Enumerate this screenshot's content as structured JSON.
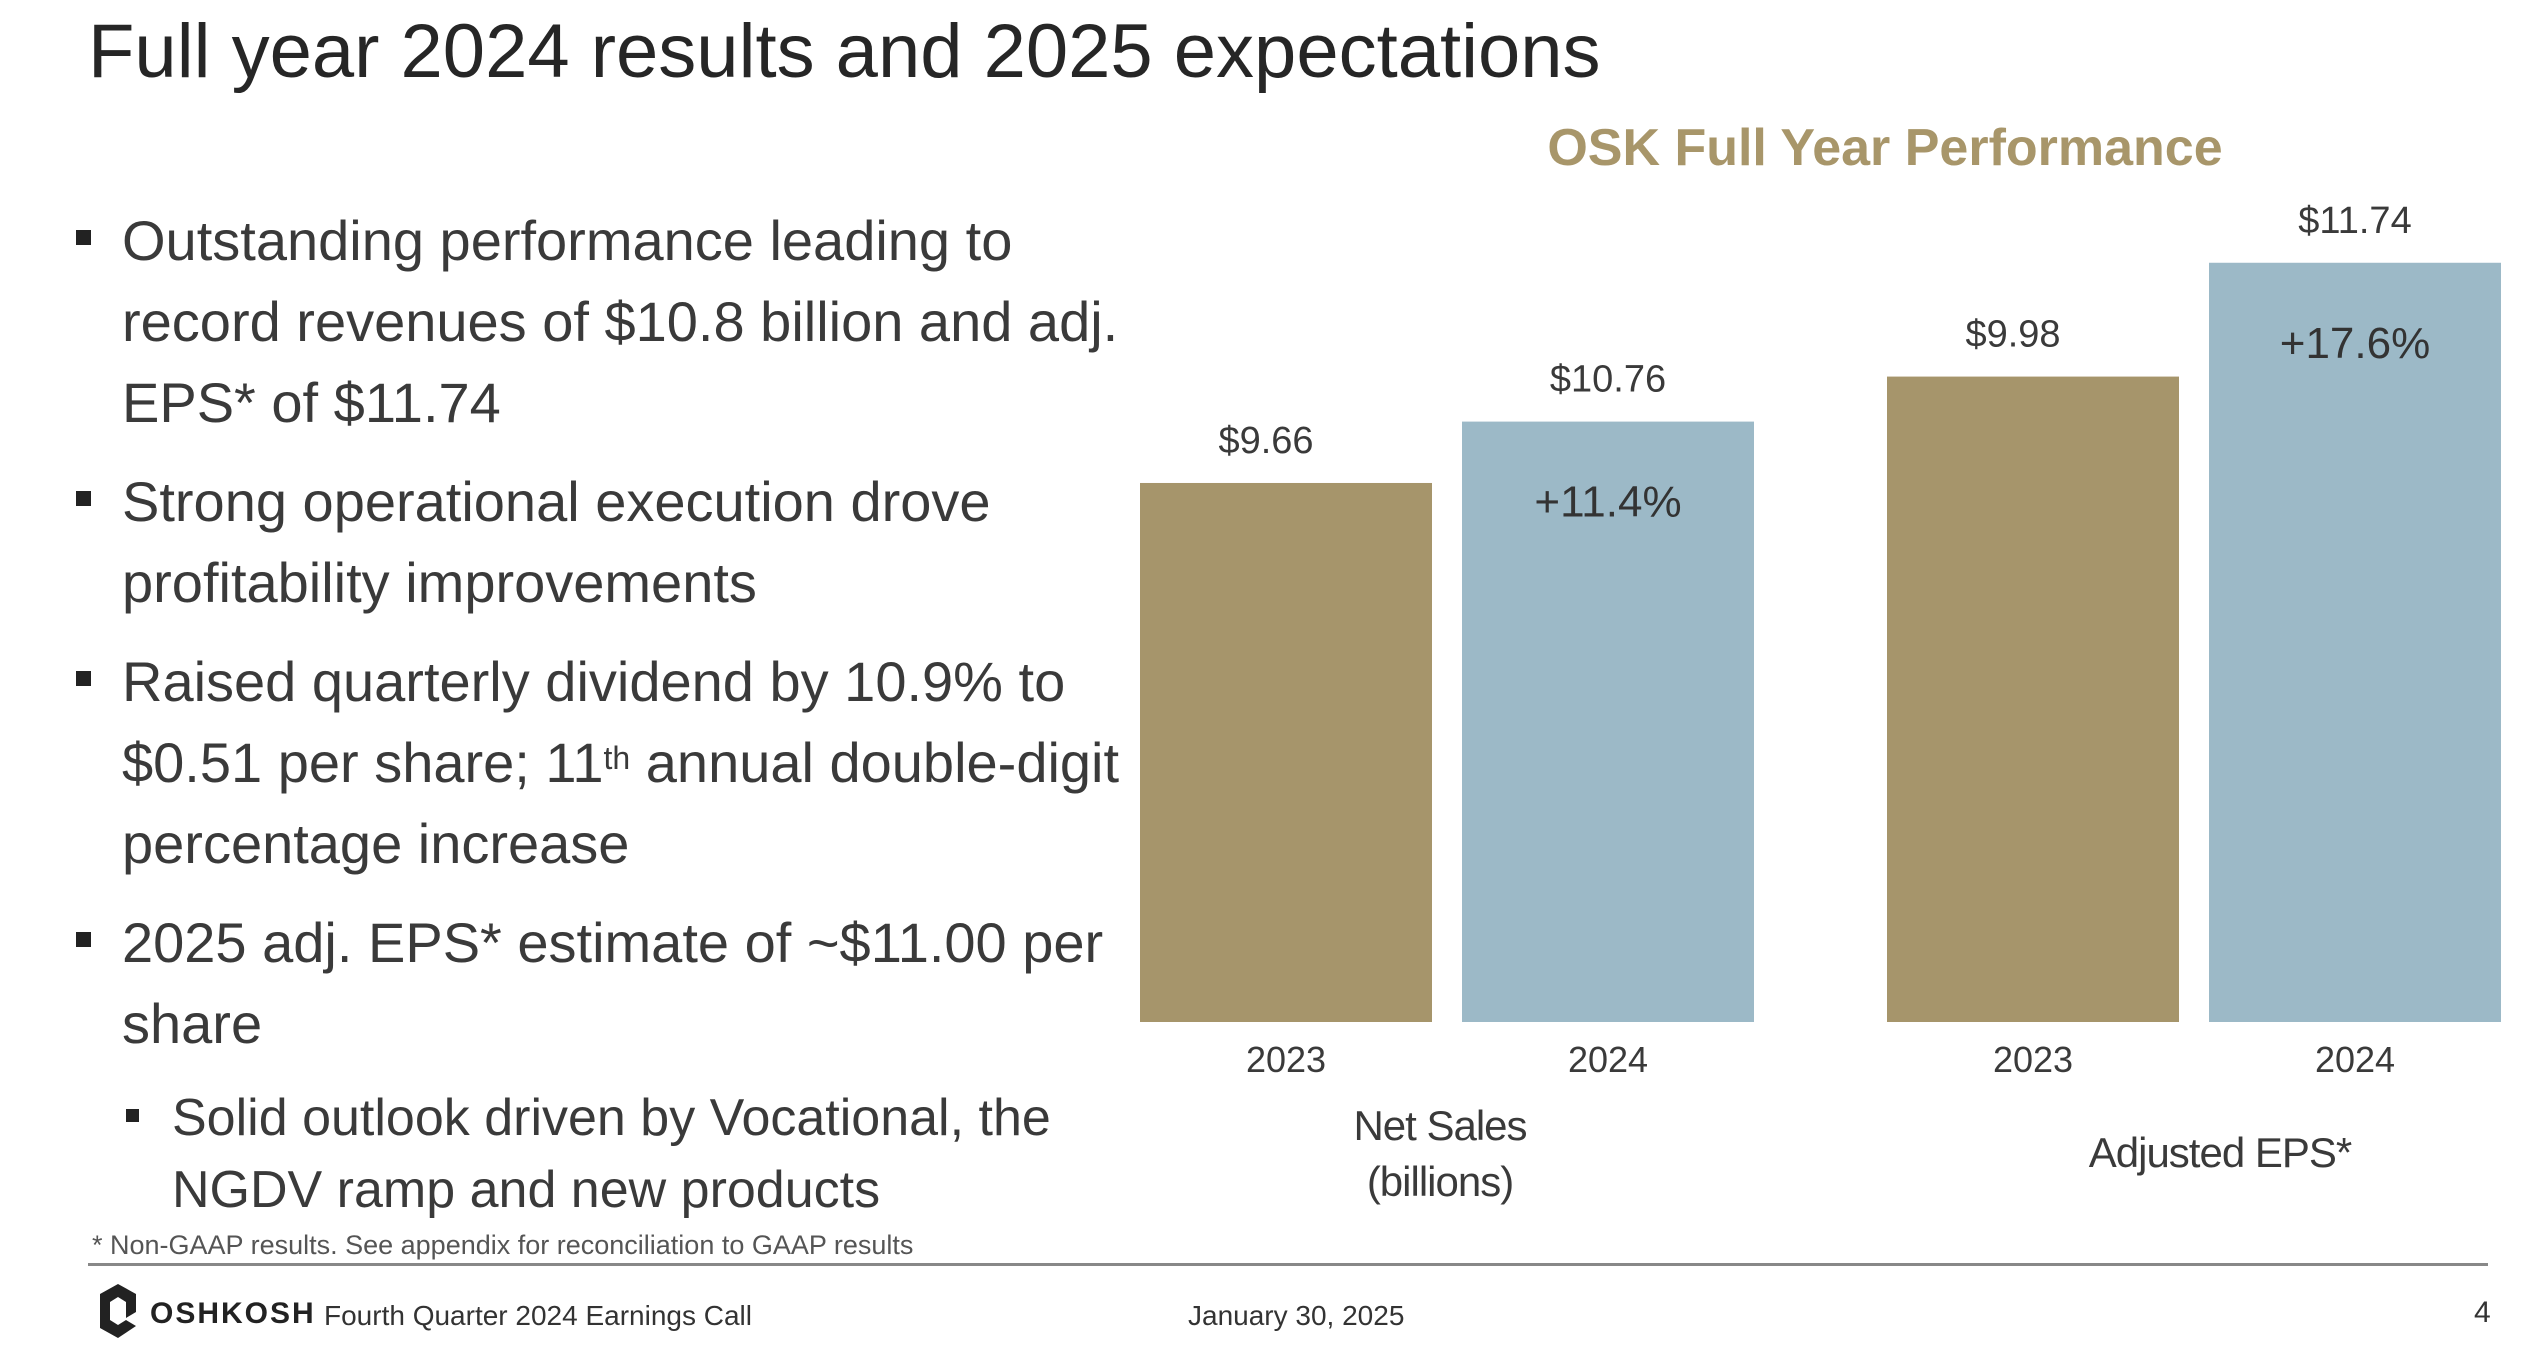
{
  "slide": {
    "title": "Full year 2024 results and 2025 expectations",
    "bullets": [
      {
        "text": "Outstanding performance leading to record revenues of $10.8 billion and adj. EPS* of $11.74"
      },
      {
        "text": "Strong operational execution drove profitability improvements"
      },
      {
        "pre": "Raised quarterly dividend by 10.9% to $0.51 per share; 11",
        "sup": "th",
        "post": " annual double-digit percentage increase"
      },
      {
        "text": "2025 adj. EPS* estimate of ~$11.00 per share"
      }
    ],
    "sub_bullet": "Solid outlook driven by Vocational, the NGDV ramp and new products",
    "footnote": "*   Non-GAAP results. See appendix for reconciliation to GAAP results"
  },
  "footer": {
    "logo_text": "OSHKOSH",
    "event": "Fourth Quarter 2024 Earnings Call",
    "date": "January 30, 2025",
    "page": "4"
  },
  "colors": {
    "bar_2023": "#a6956b",
    "bar_2024": "#9cb9c7",
    "title_accent": "#a8966a"
  },
  "chart_data": [
    {
      "type": "bar",
      "title": "OSK Full Year Performance",
      "caption_lines": [
        "Net Sales",
        "(billions)"
      ],
      "categories": [
        "2023",
        "2024"
      ],
      "values": [
        9.66,
        10.76
      ],
      "value_labels": [
        "$9.66",
        "$10.76"
      ],
      "change_label": "+11.4%"
    },
    {
      "type": "bar",
      "caption_lines": [
        "Adjusted EPS*"
      ],
      "categories": [
        "2023",
        "2024"
      ],
      "values": [
        9.98,
        11.74
      ],
      "value_labels": [
        "$9.98",
        "$11.74"
      ],
      "change_label": "+17.6%"
    }
  ]
}
